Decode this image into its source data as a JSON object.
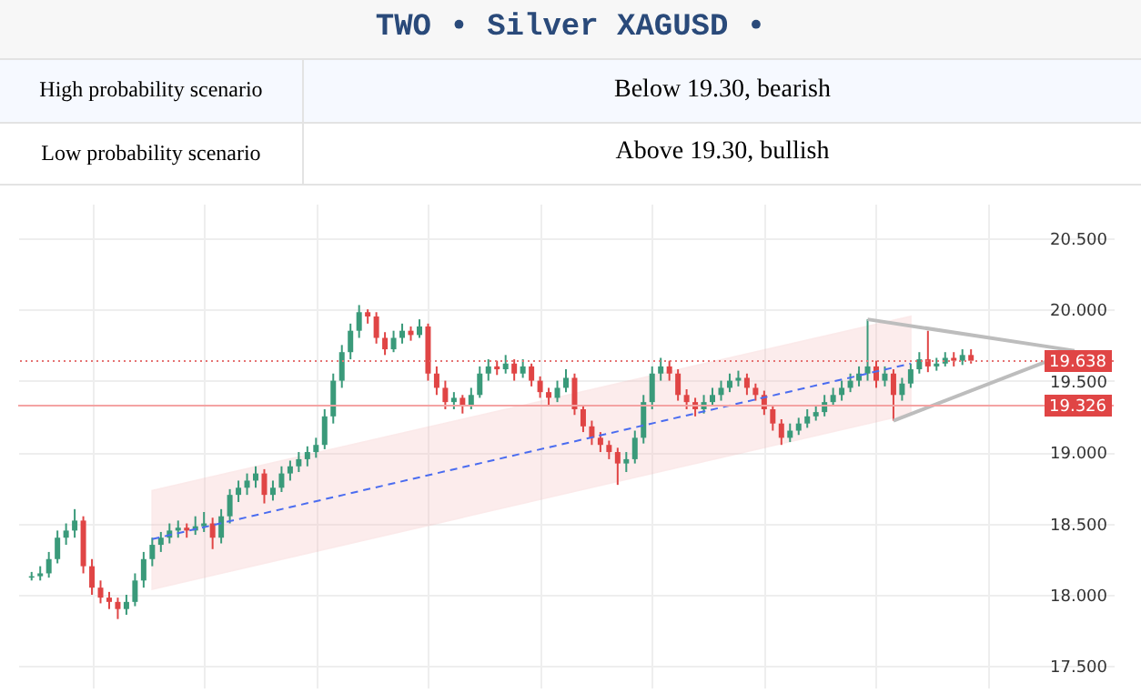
{
  "chart_data": {
    "type": "candlestick",
    "title": "TWO  • Silver  XAGUSD  •",
    "annotations": [
      "High probability scenario",
      "Below 19.30, bearish",
      "Low probability scenario",
      "Above 19.30, bullish"
    ],
    "categories": [
      null,
      null,
      null,
      null,
      null,
      null,
      null,
      null,
      null,
      null,
      null,
      null,
      null,
      null,
      null,
      null,
      null,
      null,
      null,
      null,
      null,
      null,
      null,
      null,
      null,
      null,
      null,
      null,
      null,
      null,
      null,
      null,
      null,
      null,
      null,
      null,
      null,
      null,
      null,
      null,
      null,
      null,
      null,
      null,
      null,
      null,
      null,
      null,
      null,
      null,
      null,
      null,
      null,
      null,
      null,
      null,
      null,
      null,
      null,
      null,
      null,
      null,
      null,
      null,
      null,
      null,
      null,
      null,
      null,
      null,
      null,
      null,
      null,
      null,
      null,
      null,
      null,
      null,
      null,
      null,
      null,
      null,
      null,
      null,
      null,
      null,
      null,
      null,
      null,
      null,
      null,
      null,
      null,
      null,
      null,
      null,
      null,
      null,
      null,
      null,
      null,
      null,
      null,
      null,
      null,
      null,
      null,
      null,
      null,
      null,
      null,
      null,
      null,
      null,
      null,
      null,
      null,
      null,
      null,
      null,
      null,
      null
    ],
    "ohlc": [
      [
        18.12,
        18.16,
        18.1,
        18.13
      ],
      [
        18.13,
        18.2,
        18.1,
        18.15
      ],
      [
        18.15,
        18.3,
        18.12,
        18.25
      ],
      [
        18.25,
        18.45,
        18.22,
        18.4
      ],
      [
        18.4,
        18.5,
        18.35,
        18.45
      ],
      [
        18.45,
        18.6,
        18.4,
        18.52
      ],
      [
        18.52,
        18.55,
        18.15,
        18.2
      ],
      [
        18.2,
        18.25,
        18.0,
        18.05
      ],
      [
        18.05,
        18.1,
        17.94,
        17.98
      ],
      [
        17.98,
        18.02,
        17.9,
        17.95
      ],
      [
        17.95,
        17.98,
        17.83,
        17.9
      ],
      [
        17.9,
        18.0,
        17.86,
        17.95
      ],
      [
        17.95,
        18.15,
        17.92,
        18.1
      ],
      [
        18.1,
        18.3,
        18.05,
        18.25
      ],
      [
        18.25,
        18.4,
        18.2,
        18.35
      ],
      [
        18.35,
        18.44,
        18.3,
        18.4
      ],
      [
        18.4,
        18.5,
        18.36,
        18.45
      ],
      [
        18.45,
        18.52,
        18.4,
        18.47
      ],
      [
        18.47,
        18.5,
        18.4,
        18.45
      ],
      [
        18.45,
        18.55,
        18.42,
        18.48
      ],
      [
        18.48,
        18.58,
        18.44,
        18.5
      ],
      [
        18.5,
        18.54,
        18.32,
        18.4
      ],
      [
        18.4,
        18.6,
        18.36,
        18.55
      ],
      [
        18.55,
        18.74,
        18.5,
        18.7
      ],
      [
        18.7,
        18.8,
        18.65,
        18.75
      ],
      [
        18.75,
        18.85,
        18.7,
        18.8
      ],
      [
        18.8,
        18.9,
        18.75,
        18.85
      ],
      [
        18.85,
        18.88,
        18.64,
        18.7
      ],
      [
        18.7,
        18.8,
        18.66,
        18.75
      ],
      [
        18.75,
        18.9,
        18.72,
        18.85
      ],
      [
        18.85,
        18.94,
        18.8,
        18.9
      ],
      [
        18.9,
        19.0,
        18.86,
        18.95
      ],
      [
        18.95,
        19.04,
        18.9,
        19.0
      ],
      [
        19.0,
        19.1,
        18.96,
        19.05
      ],
      [
        19.05,
        19.3,
        19.02,
        19.25
      ],
      [
        19.25,
        19.55,
        19.2,
        19.5
      ],
      [
        19.5,
        19.75,
        19.45,
        19.7
      ],
      [
        19.7,
        19.9,
        19.65,
        19.85
      ],
      [
        19.85,
        20.03,
        19.8,
        19.98
      ],
      [
        19.98,
        20.0,
        19.9,
        19.95
      ],
      [
        19.95,
        19.98,
        19.76,
        19.8
      ],
      [
        19.8,
        19.84,
        19.68,
        19.72
      ],
      [
        19.72,
        19.85,
        19.7,
        19.8
      ],
      [
        19.8,
        19.9,
        19.76,
        19.85
      ],
      [
        19.85,
        19.88,
        19.78,
        19.82
      ],
      [
        19.82,
        19.93,
        19.8,
        19.88
      ],
      [
        19.88,
        19.9,
        19.5,
        19.55
      ],
      [
        19.55,
        19.6,
        19.4,
        19.45
      ],
      [
        19.45,
        19.5,
        19.3,
        19.35
      ],
      [
        19.35,
        19.42,
        19.3,
        19.38
      ],
      [
        19.38,
        19.4,
        19.27,
        19.32
      ],
      [
        19.32,
        19.45,
        19.3,
        19.4
      ],
      [
        19.4,
        19.6,
        19.38,
        19.55
      ],
      [
        19.55,
        19.65,
        19.5,
        19.6
      ],
      [
        19.6,
        19.64,
        19.54,
        19.58
      ],
      [
        19.58,
        19.68,
        19.55,
        19.62
      ],
      [
        19.62,
        19.65,
        19.5,
        19.55
      ],
      [
        19.55,
        19.65,
        19.52,
        19.6
      ],
      [
        19.6,
        19.62,
        19.46,
        19.5
      ],
      [
        19.5,
        19.53,
        19.38,
        19.42
      ],
      [
        19.42,
        19.45,
        19.33,
        19.38
      ],
      [
        19.38,
        19.5,
        19.35,
        19.45
      ],
      [
        19.45,
        19.58,
        19.42,
        19.52
      ],
      [
        19.52,
        19.55,
        19.26,
        19.3
      ],
      [
        19.3,
        19.33,
        19.14,
        19.18
      ],
      [
        19.18,
        19.22,
        19.05,
        19.1
      ],
      [
        19.1,
        19.14,
        19.0,
        19.05
      ],
      [
        19.05,
        19.08,
        18.95,
        19.0
      ],
      [
        19.0,
        19.03,
        18.77,
        18.92
      ],
      [
        18.92,
        19.0,
        18.86,
        18.95
      ],
      [
        18.95,
        19.15,
        18.92,
        19.1
      ],
      [
        19.1,
        19.4,
        19.06,
        19.35
      ],
      [
        19.35,
        19.6,
        19.3,
        19.55
      ],
      [
        19.55,
        19.66,
        19.5,
        19.6
      ],
      [
        19.6,
        19.64,
        19.5,
        19.55
      ],
      [
        19.55,
        19.58,
        19.36,
        19.4
      ],
      [
        19.4,
        19.44,
        19.3,
        19.35
      ],
      [
        19.35,
        19.38,
        19.25,
        19.3
      ],
      [
        19.3,
        19.4,
        19.27,
        19.35
      ],
      [
        19.35,
        19.45,
        19.32,
        19.4
      ],
      [
        19.4,
        19.5,
        19.36,
        19.45
      ],
      [
        19.45,
        19.55,
        19.42,
        19.5
      ],
      [
        19.5,
        19.57,
        19.46,
        19.52
      ],
      [
        19.52,
        19.55,
        19.4,
        19.45
      ],
      [
        19.45,
        19.48,
        19.36,
        19.4
      ],
      [
        19.4,
        19.43,
        19.26,
        19.3
      ],
      [
        19.3,
        19.33,
        19.15,
        19.2
      ],
      [
        19.2,
        19.23,
        19.05,
        19.1
      ],
      [
        19.1,
        19.2,
        19.07,
        19.15
      ],
      [
        19.15,
        19.24,
        19.12,
        19.2
      ],
      [
        19.2,
        19.3,
        19.17,
        19.25
      ],
      [
        19.25,
        19.32,
        19.22,
        19.28
      ],
      [
        19.28,
        19.4,
        19.25,
        19.35
      ],
      [
        19.35,
        19.45,
        19.32,
        19.4
      ],
      [
        19.4,
        19.5,
        19.36,
        19.45
      ],
      [
        19.45,
        19.55,
        19.42,
        19.5
      ],
      [
        19.5,
        19.6,
        19.46,
        19.55
      ],
      [
        19.55,
        19.93,
        19.5,
        19.6
      ],
      [
        19.6,
        19.64,
        19.45,
        19.5
      ],
      [
        19.5,
        19.6,
        19.46,
        19.55
      ],
      [
        19.55,
        19.58,
        19.22,
        19.4
      ],
      [
        19.4,
        19.52,
        19.36,
        19.48
      ],
      [
        19.48,
        19.62,
        19.45,
        19.58
      ],
      [
        19.58,
        19.7,
        19.55,
        19.65
      ],
      [
        19.65,
        19.85,
        19.56,
        19.6
      ],
      [
        19.6,
        19.66,
        19.57,
        19.62
      ],
      [
        19.62,
        19.7,
        19.6,
        19.66
      ],
      [
        19.66,
        19.7,
        19.6,
        19.64
      ],
      [
        19.64,
        19.72,
        19.61,
        19.68
      ],
      [
        19.68,
        19.72,
        19.62,
        19.64
      ],
      null,
      null,
      null,
      null,
      null,
      null,
      null,
      null,
      null,
      null,
      null,
      null
    ],
    "series": [
      {
        "type": "line",
        "color": "#4a6cf0",
        "line_style": "dashed",
        "values": [
          null,
          null,
          null,
          null,
          null,
          null,
          null,
          null,
          null,
          null,
          null,
          null,
          null,
          null,
          18.39,
          null,
          null,
          null,
          null,
          null,
          null,
          null,
          null,
          null,
          null,
          null,
          null,
          null,
          null,
          null,
          null,
          null,
          null,
          null,
          null,
          null,
          null,
          null,
          null,
          null,
          null,
          null,
          null,
          null,
          null,
          null,
          null,
          null,
          null,
          null,
          null,
          null,
          null,
          null,
          null,
          null,
          null,
          null,
          null,
          null,
          null,
          null,
          null,
          null,
          null,
          null,
          null,
          null,
          null,
          null,
          null,
          null,
          null,
          null,
          null,
          null,
          null,
          null,
          null,
          null,
          null,
          null,
          null,
          null,
          null,
          null,
          null,
          null,
          null,
          null,
          null,
          null,
          null,
          null,
          null,
          null,
          null,
          null,
          null,
          null,
          null,
          null,
          19.62,
          null,
          null,
          null,
          null,
          null,
          null,
          null,
          null,
          null,
          null,
          null,
          null,
          null,
          null,
          null,
          null,
          null,
          null,
          null
        ],
        "lower": [
          null,
          null,
          null,
          null,
          null,
          null,
          null,
          null,
          null,
          null,
          null,
          null,
          null,
          null,
          18.04,
          null,
          null,
          null,
          null,
          null,
          null,
          null,
          null,
          null,
          null,
          null,
          null,
          null,
          null,
          null,
          null,
          null,
          null,
          null,
          null,
          null,
          null,
          null,
          null,
          null,
          null,
          null,
          null,
          null,
          null,
          null,
          null,
          null,
          null,
          null,
          null,
          null,
          null,
          null,
          null,
          null,
          null,
          null,
          null,
          null,
          null,
          null,
          null,
          null,
          null,
          null,
          null,
          null,
          null,
          null,
          null,
          null,
          null,
          null,
          null,
          null,
          null,
          null,
          null,
          null,
          null,
          null,
          null,
          null,
          null,
          null,
          null,
          null,
          null,
          null,
          null,
          null,
          null,
          null,
          null,
          null,
          null,
          null,
          null,
          null,
          null,
          null,
          19.27,
          null,
          null,
          null,
          null,
          null,
          null,
          null,
          null,
          null,
          null,
          null,
          null,
          null,
          null,
          null,
          null,
          null,
          null,
          null
        ],
        "upper": [
          null,
          null,
          null,
          null,
          null,
          null,
          null,
          null,
          null,
          null,
          null,
          null,
          null,
          null,
          18.73,
          null,
          null,
          null,
          null,
          null,
          null,
          null,
          null,
          null,
          null,
          null,
          null,
          null,
          null,
          null,
          null,
          null,
          null,
          null,
          null,
          null,
          null,
          null,
          null,
          null,
          null,
          null,
          null,
          null,
          null,
          null,
          null,
          null,
          null,
          null,
          null,
          null,
          null,
          null,
          null,
          null,
          null,
          null,
          null,
          null,
          null,
          null,
          null,
          null,
          null,
          null,
          null,
          null,
          null,
          null,
          null,
          null,
          null,
          null,
          null,
          null,
          null,
          null,
          null,
          null,
          null,
          null,
          null,
          null,
          null,
          null,
          null,
          null,
          null,
          null,
          null,
          null,
          null,
          null,
          null,
          null,
          null,
          null,
          null,
          null,
          null,
          null,
          19.95,
          null,
          null,
          null,
          null,
          null,
          null,
          null,
          null,
          null,
          null,
          null,
          null,
          null,
          null,
          null,
          null,
          null,
          null,
          null
        ]
      },
      {
        "type": "line",
        "color": "#bdbdbd",
        "line_style": "solid",
        "values": [
          null,
          null,
          null,
          null,
          null,
          null,
          null,
          null,
          null,
          null,
          null,
          null,
          null,
          null,
          null,
          null,
          null,
          null,
          null,
          null,
          null,
          null,
          null,
          null,
          null,
          null,
          null,
          null,
          null,
          null,
          null,
          null,
          null,
          null,
          null,
          null,
          null,
          null,
          null,
          null,
          null,
          null,
          null,
          null,
          null,
          null,
          null,
          null,
          null,
          null,
          null,
          null,
          null,
          null,
          null,
          null,
          null,
          null,
          null,
          null,
          null,
          null,
          null,
          null,
          null,
          null,
          null,
          null,
          null,
          null,
          null,
          null,
          null,
          null,
          null,
          null,
          null,
          null,
          null,
          null,
          null,
          null,
          null,
          null,
          null,
          null,
          null,
          null,
          null,
          null,
          null,
          null,
          null,
          null,
          null,
          null,
          null,
          19.93,
          null,
          null,
          null,
          null,
          null,
          null,
          null,
          null,
          null,
          null,
          null,
          null,
          null,
          null,
          null,
          null,
          null,
          null,
          null,
          null,
          null,
          null,
          null,
          19.71
        ]
      },
      {
        "type": "line",
        "color": "#bdbdbd",
        "line_style": "solid",
        "values": [
          null,
          null,
          null,
          null,
          null,
          null,
          null,
          null,
          null,
          null,
          null,
          null,
          null,
          null,
          null,
          null,
          null,
          null,
          null,
          null,
          null,
          null,
          null,
          null,
          null,
          null,
          null,
          null,
          null,
          null,
          null,
          null,
          null,
          null,
          null,
          null,
          null,
          null,
          null,
          null,
          null,
          null,
          null,
          null,
          null,
          null,
          null,
          null,
          null,
          null,
          null,
          null,
          null,
          null,
          null,
          null,
          null,
          null,
          null,
          null,
          null,
          null,
          null,
          null,
          null,
          null,
          null,
          null,
          null,
          null,
          null,
          null,
          null,
          null,
          null,
          null,
          null,
          null,
          null,
          null,
          null,
          null,
          null,
          null,
          null,
          null,
          null,
          null,
          null,
          null,
          null,
          null,
          null,
          null,
          null,
          null,
          null,
          null,
          null,
          null,
          19.22,
          null,
          null,
          null,
          null,
          null,
          null,
          null,
          null,
          null,
          null,
          null,
          null,
          null,
          null,
          null,
          null,
          null,
          null,
          null,
          null,
          19.71
        ]
      }
    ],
    "ref_lines": [
      {
        "axis": "y",
        "value": 19.638,
        "label": "19.638",
        "color": "#e57373",
        "line_style": "dotted"
      },
      {
        "axis": "y",
        "value": 19.326,
        "label": "19.326",
        "color": "#f4a3a3",
        "line_style": "solid"
      }
    ],
    "ylim": [
      17.35,
      20.74
    ],
    "yticks": [
      {
        "value": 17.5,
        "label": "17.500"
      },
      {
        "value": 18,
        "label": "18.000"
      },
      {
        "value": 18.5,
        "label": "18.500"
      },
      {
        "value": 19,
        "label": "19.000"
      },
      {
        "value": 19.5,
        "label": "19.500"
      },
      {
        "value": 20,
        "label": "20.000"
      },
      {
        "value": 20.5,
        "label": "20.500"
      }
    ],
    "tick_labels": "y",
    "grid": true
  }
}
